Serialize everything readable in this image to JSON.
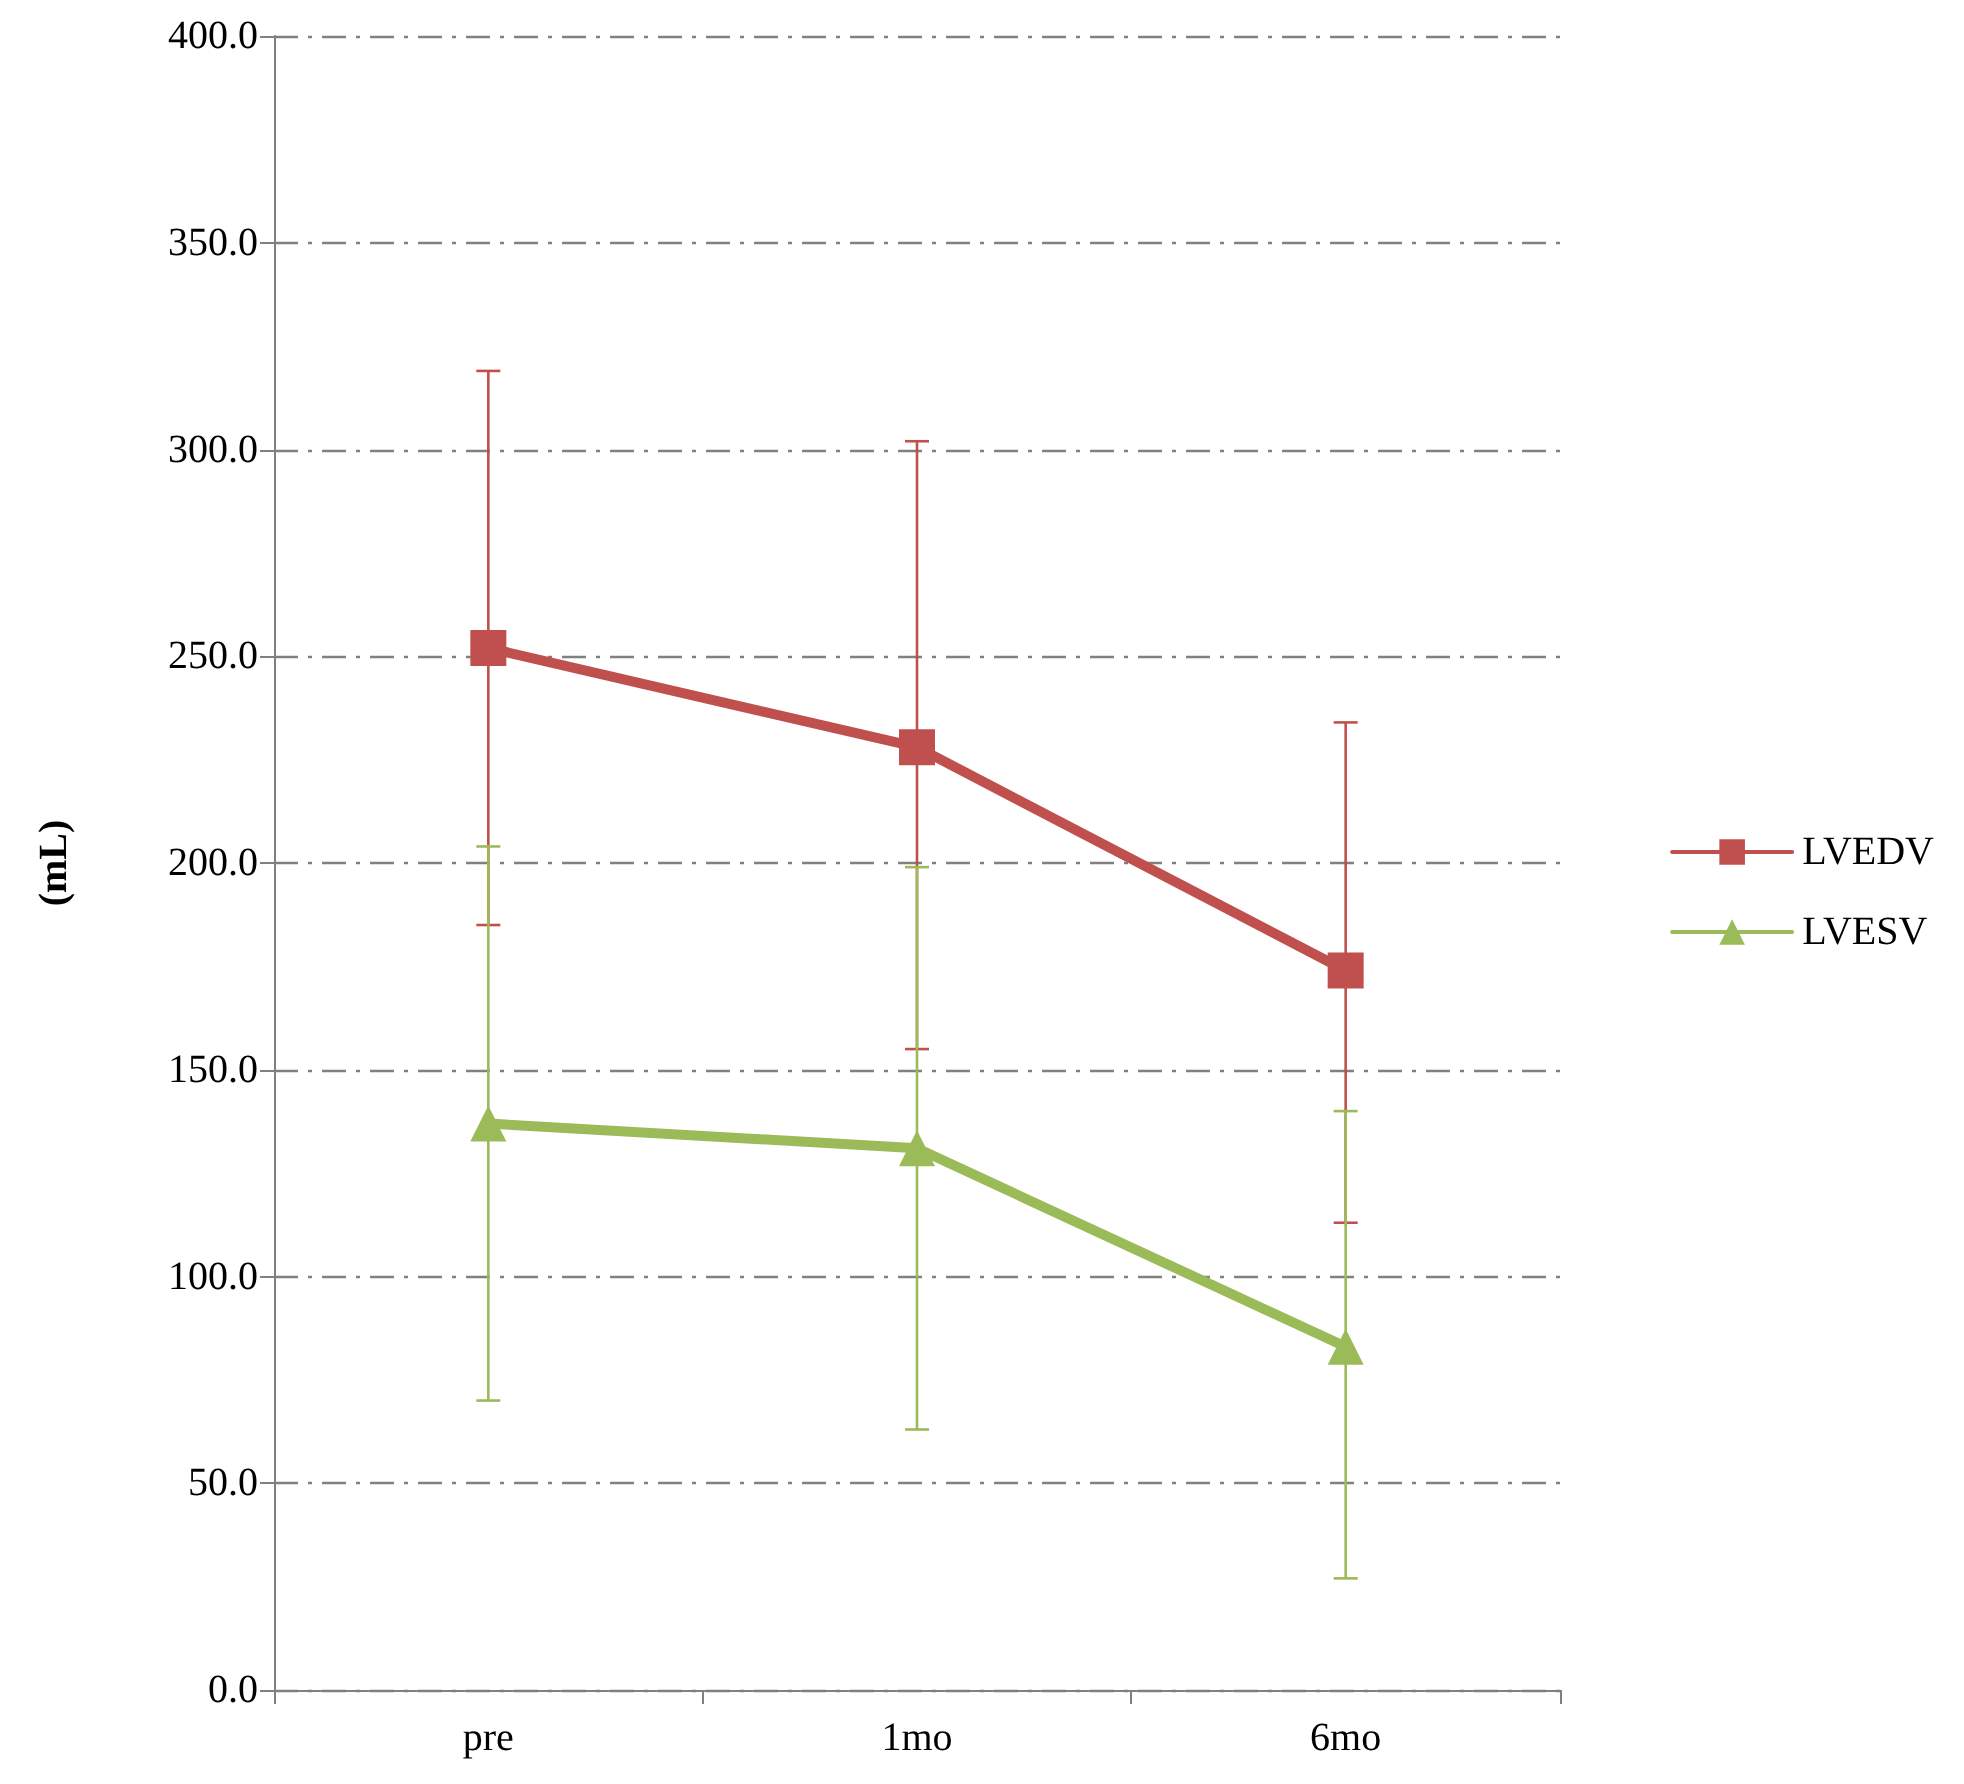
{
  "chart_data": {
    "type": "line",
    "ylabel": "(mL)",
    "categories": [
      "pre",
      "1mo",
      "6mo"
    ],
    "series": [
      {
        "name": "LVEDV",
        "color": "#c0504d",
        "marker": "square",
        "values": [
          252,
          228,
          174
        ],
        "errors": [
          [
            185,
            319
          ],
          [
            155,
            302
          ],
          [
            113,
            234
          ]
        ]
      },
      {
        "name": "LVESV",
        "color": "#9bbb59",
        "marker": "triangle",
        "values": [
          137,
          131,
          83
        ],
        "errors": [
          [
            70,
            204
          ],
          [
            63,
            199
          ],
          [
            27,
            140
          ]
        ]
      }
    ],
    "ylim": [
      0,
      400
    ],
    "yticks": [
      {
        "value": 0,
        "label": "0.0"
      },
      {
        "value": 50,
        "label": "50.0"
      },
      {
        "value": 100,
        "label": "100.0"
      },
      {
        "value": 150,
        "label": "150.0"
      },
      {
        "value": 200,
        "label": "200.0"
      },
      {
        "value": 250,
        "label": "250.0"
      },
      {
        "value": 300,
        "label": "300.0"
      },
      {
        "value": 350,
        "label": "350.0"
      },
      {
        "value": 400,
        "label": "400.0"
      }
    ],
    "grid": "y",
    "legend": "right",
    "line_style": "solid"
  }
}
